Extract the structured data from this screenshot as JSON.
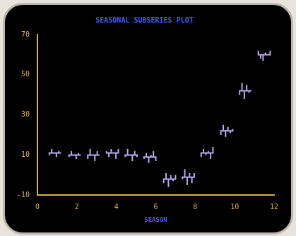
{
  "chart_data": {
    "type": "line",
    "title": "SEASONAL SUBSERIES PLOT",
    "x_label": "SEASON",
    "color": "#b9a9f2",
    "grid": false,
    "xlim": [
      0,
      12
    ],
    "xticks": [
      0,
      2,
      4,
      6,
      8,
      10,
      12
    ],
    "ylim": [
      -10,
      70
    ],
    "yticks": [
      -10,
      10,
      30,
      50,
      70
    ],
    "subseries": [
      {
        "mean": 11,
        "x": [
          0.6,
          0.72,
          0.84,
          0.96,
          1.08,
          1.2
        ],
        "values": [
          10,
          13,
          11,
          9,
          12,
          11
        ]
      },
      {
        "mean": 10,
        "x": [
          1.6,
          1.72,
          1.84,
          1.96,
          2.08,
          2.2
        ],
        "values": [
          9,
          12,
          10,
          8,
          11,
          10
        ]
      },
      {
        "mean": 10,
        "x": [
          2.55,
          2.67,
          2.79,
          2.91,
          3.03,
          3.15
        ],
        "values": [
          8,
          13,
          10,
          7,
          12,
          10
        ]
      },
      {
        "mean": 11,
        "x": [
          3.5,
          3.62,
          3.74,
          3.86,
          3.98,
          4.1
        ],
        "values": [
          12,
          9,
          13,
          11,
          8,
          13
        ]
      },
      {
        "mean": 10,
        "x": [
          4.45,
          4.57,
          4.69,
          4.81,
          4.93,
          5.05
        ],
        "values": [
          9,
          13,
          10,
          7,
          12,
          9
        ]
      },
      {
        "mean": 9,
        "x": [
          5.4,
          5.52,
          5.64,
          5.76,
          5.88,
          6.0
        ],
        "values": [
          8,
          11,
          6,
          10,
          12,
          7
        ]
      },
      {
        "mean": -2,
        "x": [
          6.4,
          6.52,
          6.64,
          6.76,
          6.88,
          7.0
        ],
        "values": [
          -4,
          1,
          -6,
          0,
          -3,
          0
        ]
      },
      {
        "mean": -1,
        "x": [
          7.35,
          7.47,
          7.59,
          7.71,
          7.83,
          7.95
        ],
        "values": [
          -2,
          3,
          -5,
          1,
          -4,
          1
        ]
      },
      {
        "mean": 11,
        "x": [
          8.3,
          8.42,
          8.54,
          8.66,
          8.78,
          8.9
        ],
        "values": [
          9,
          13,
          10,
          12,
          8,
          14
        ]
      },
      {
        "mean": 22,
        "x": [
          9.3,
          9.42,
          9.54,
          9.66,
          9.78,
          9.9
        ],
        "values": [
          20,
          25,
          19,
          24,
          21,
          23
        ]
      },
      {
        "mean": 42,
        "x": [
          10.25,
          10.37,
          10.49,
          10.61,
          10.73,
          10.85
        ],
        "values": [
          40,
          46,
          38,
          45,
          41,
          42
        ]
      },
      {
        "mean": 60,
        "x": [
          11.2,
          11.32,
          11.44,
          11.56,
          11.68,
          11.8
        ],
        "values": [
          62,
          58,
          57,
          61,
          60,
          62
        ]
      }
    ]
  }
}
